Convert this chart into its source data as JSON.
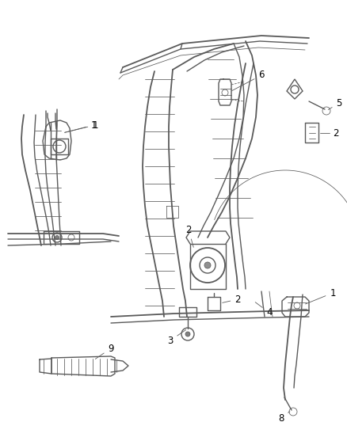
{
  "background_color": "#ffffff",
  "line_color": "#5a5a5a",
  "label_color": "#000000",
  "label_fontsize": 8.5,
  "fig_width": 4.38,
  "fig_height": 5.33,
  "dpi": 100,
  "lw_main": 1.0,
  "lw_thin": 0.55,
  "lw_thick": 1.3,
  "lw_heavy": 1.8
}
